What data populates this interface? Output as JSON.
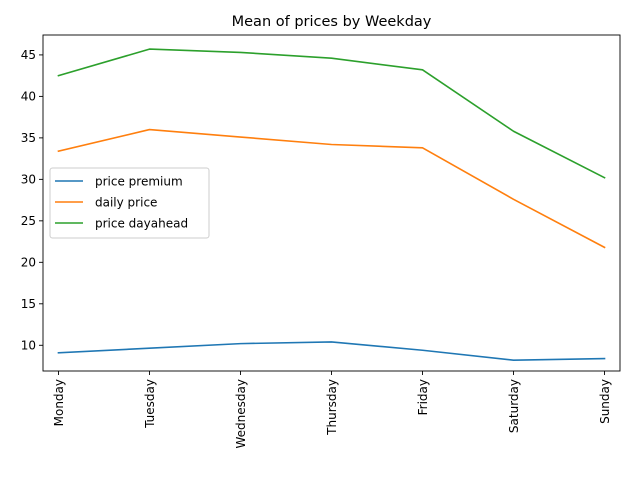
{
  "chart_data": {
    "type": "line",
    "title": "Mean of prices by Weekday",
    "xlabel": "",
    "ylabel": "",
    "categories": [
      "Monday",
      "Tuesday",
      "Wednesday",
      "Thursday",
      "Friday",
      "Saturday",
      "Sunday"
    ],
    "series": [
      {
        "name": "price premium",
        "color": "#1f77b4",
        "values": [
          9.1,
          9.65,
          10.2,
          10.4,
          9.4,
          8.2,
          8.4
        ]
      },
      {
        "name": "daily price",
        "color": "#ff7f0e",
        "values": [
          33.4,
          36.0,
          35.1,
          34.2,
          33.8,
          27.6,
          21.8
        ]
      },
      {
        "name": "price dayahead",
        "color": "#2ca02c",
        "values": [
          42.5,
          45.7,
          45.3,
          44.6,
          43.2,
          35.8,
          30.2
        ]
      }
    ],
    "ylim": [
      6.9,
      47.4
    ],
    "yticks": [
      10,
      15,
      20,
      25,
      30,
      35,
      40,
      45
    ],
    "grid": false,
    "legend_position": "center-left"
  }
}
